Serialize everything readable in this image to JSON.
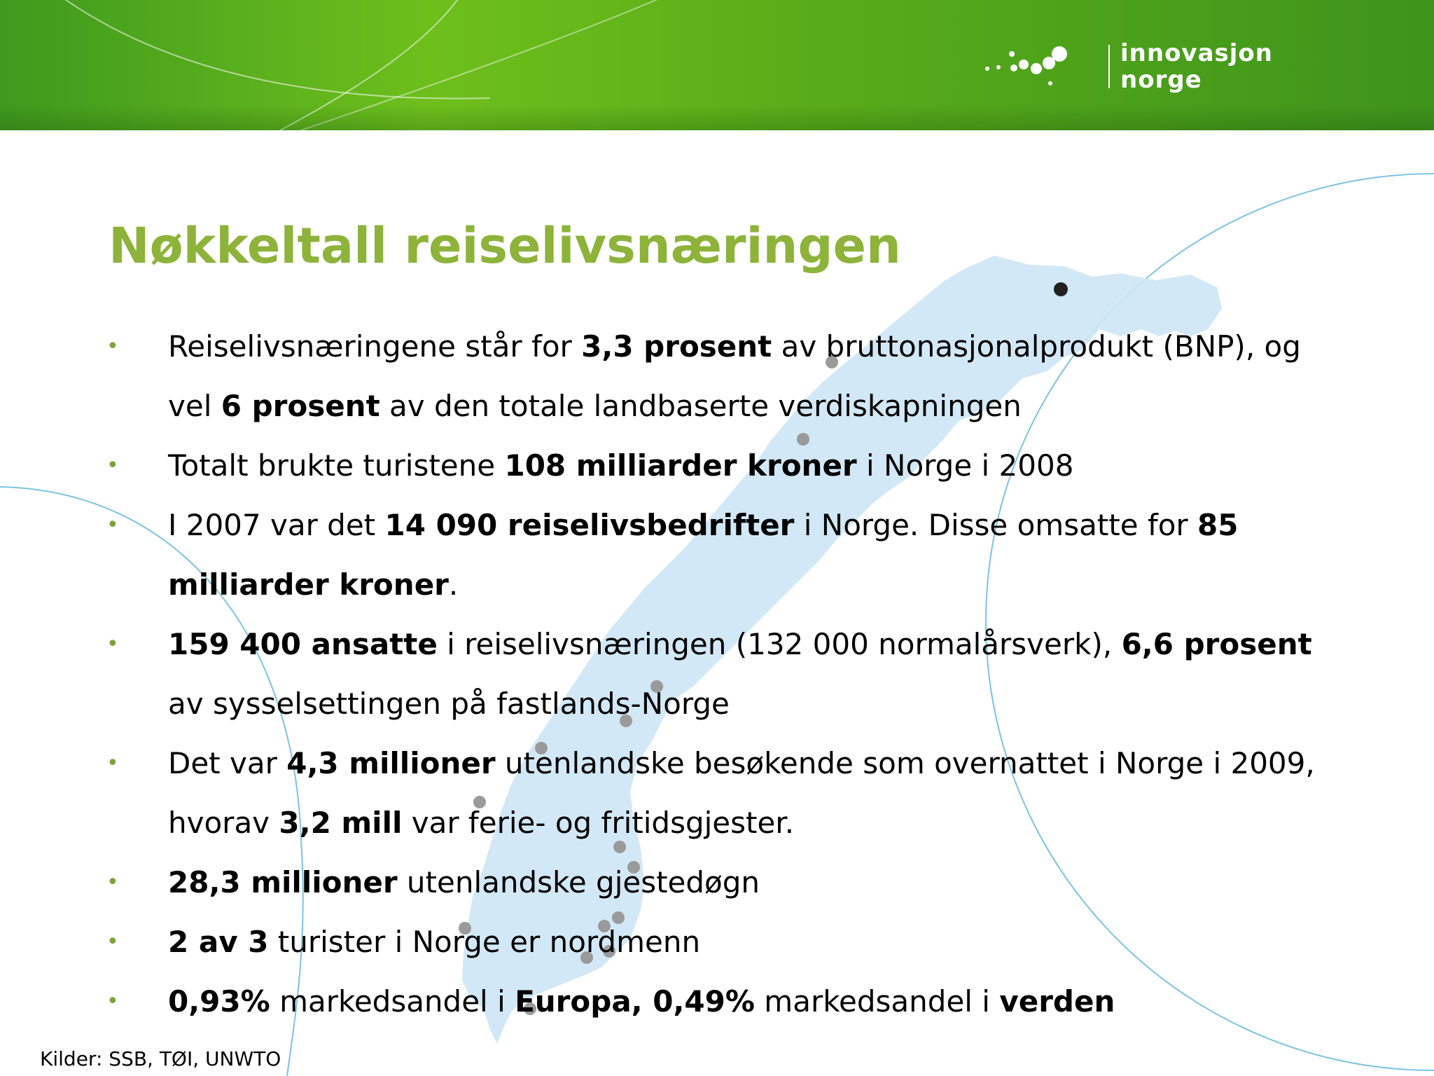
{
  "brand": {
    "line1": "innovasjon",
    "line2": "norge",
    "logo_color": "#ffffff",
    "header_color": "#5aad19"
  },
  "title": "Nøkkeltall reiselivsnæringen",
  "bullet_marker": "•",
  "bullets": [
    {
      "t0": "Reiselivsnæringene står for ",
      "b0": "3,3 prosent",
      "t1": " av bruttonasjonalprodukt (BNP), og vel ",
      "b1": "6 prosent",
      "t2": " av den totale landbaserte verdiskapningen"
    },
    {
      "t0": "Totalt brukte turistene ",
      "b0": "108 milliarder kroner",
      "t1": " i Norge i 2008"
    },
    {
      "t0": "I 2007 var det ",
      "b0": "14 090 reiselivsbedrifter",
      "t1": " i Norge. Disse omsatte for ",
      "b1": "85 milliarder kroner",
      "t2": "."
    },
    {
      "b0": "159 400 ansatte",
      "t0": " i reiselivsnæringen (132 000 normalårsverk), ",
      "b1": "6,6 prosent",
      "t1": " av sysselsettingen på fastlands-Norge"
    },
    {
      "t0": "Det var ",
      "b0": "4,3 millioner",
      "t1": " utenlandske besøkende som overnattet i Norge i 2009, hvorav ",
      "b1": "3,2 mill",
      "t2": " var ferie- og fritidsgjester."
    },
    {
      "b0": "28,3 millioner",
      "t0": " utenlandske gjestedøgn"
    },
    {
      "b0": "2 av 3",
      "t0": " turister i Norge er nordmenn"
    },
    {
      "b0": "0,93%",
      "t0": " markedsandel i ",
      "b1": "Europa, 0,49%",
      "t1": " markedsandel i ",
      "b2": "verden"
    }
  ],
  "source": "Kilder: SSB, TØI, UNWTO",
  "colors": {
    "title": "#8db33a",
    "bullet_marker": "#7aa33a",
    "map": "#cde6f5",
    "map_dots": "#9a9a9a",
    "circle_lines": "#7cc3e0"
  }
}
